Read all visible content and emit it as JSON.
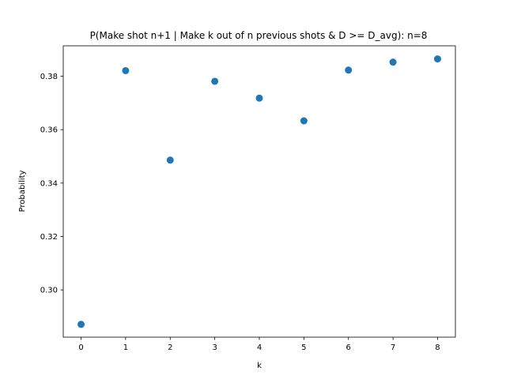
{
  "chart_data": {
    "type": "scatter",
    "title": "P(Make shot n+1 | Make k out of n previous shots & D >= D_avg): n=8",
    "xlabel": "k",
    "ylabel": "Probability",
    "x": [
      0,
      1,
      2,
      3,
      4,
      5,
      6,
      7,
      8
    ],
    "y": [
      0.2871,
      0.3821,
      0.3486,
      0.3781,
      0.3718,
      0.3633,
      0.3823,
      0.3853,
      0.3865
    ],
    "xlim": [
      -0.4,
      8.4
    ],
    "ylim": [
      0.2823,
      0.3914
    ],
    "xticks": [
      "0",
      "1",
      "2",
      "3",
      "4",
      "5",
      "6",
      "7",
      "8"
    ],
    "yticks": [
      "0.30",
      "0.32",
      "0.34",
      "0.36",
      "0.38"
    ],
    "grid": false,
    "colors": {
      "marker": "#1f77b4"
    }
  }
}
